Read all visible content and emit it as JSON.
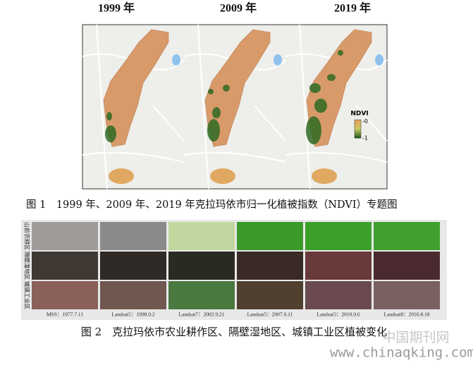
{
  "figure1": {
    "panel_labels": [
      "1999 年",
      "2009 年",
      "2019 年"
    ],
    "legend": {
      "title": "NDVI",
      "max_label": "-0",
      "min_label": "-1"
    },
    "caption": "图 1　1999 年、2009 年、2019 年克拉玛依市归一化植被指数（NDVI）专题图"
  },
  "figure2": {
    "row_labels": [
      "山前农耕区",
      "隔壁湿地区",
      "城镇工业区"
    ],
    "column_labels": [
      "MSS：1977.7.11",
      "Landsat5：1998.9.2",
      "Landsat7：2002.9.21",
      "Landsat5：2007.9.11",
      "Landsat5：2010.9.6",
      "Landsat8：2016.8.18"
    ],
    "caption": "图 2　克拉玛依市农业耕作区、隔壁湿地区、城镇工业区植被变化"
  },
  "watermark": {
    "site_name": "中国期刊网",
    "url": "www.chinaqking.com"
  }
}
